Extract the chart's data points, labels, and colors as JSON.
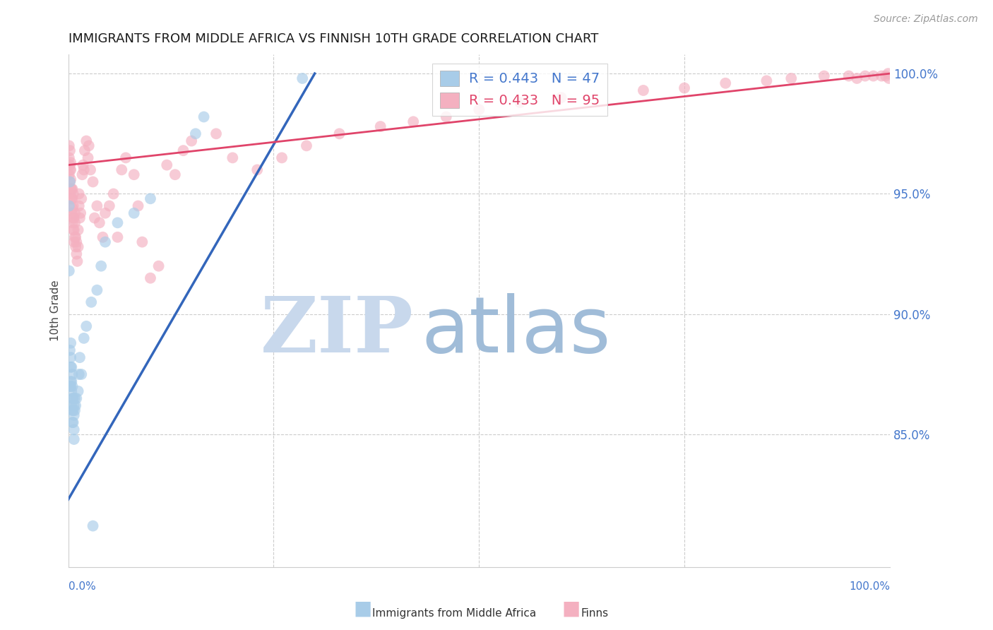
{
  "title": "IMMIGRANTS FROM MIDDLE AFRICA VS FINNISH 10TH GRADE CORRELATION CHART",
  "source": "Source: ZipAtlas.com",
  "ylabel": "10th Grade",
  "legend_blue_r": "R = 0.443",
  "legend_blue_n": "N = 47",
  "legend_pink_r": "R = 0.433",
  "legend_pink_n": "N = 95",
  "blue_color": "#a8cce8",
  "pink_color": "#f4b0c0",
  "blue_line_color": "#3366bb",
  "pink_line_color": "#e0446a",
  "xlim": [
    0.0,
    1.0
  ],
  "ylim": [
    0.795,
    1.008
  ],
  "yticks": [
    0.85,
    0.9,
    0.95,
    1.0
  ],
  "ytick_labels": [
    "85.0%",
    "90.0%",
    "95.0%",
    "100.0%"
  ],
  "background_color": "#ffffff",
  "grid_color": "#cccccc",
  "title_fontsize": 13,
  "axis_label_color": "#444444",
  "right_axis_color": "#4477cc",
  "watermark_color_zip": "#c8d8ec",
  "watermark_color_atlas": "#a0bcd8",
  "blue_line_start_x": 0.0,
  "blue_line_start_y": 0.823,
  "blue_line_end_x": 0.3,
  "blue_line_end_y": 1.0,
  "pink_line_start_x": 0.0,
  "pink_line_start_y": 0.962,
  "pink_line_end_x": 1.0,
  "pink_line_end_y": 1.0,
  "blue_scatter_x": [
    0.001,
    0.001,
    0.002,
    0.002,
    0.002,
    0.003,
    0.003,
    0.003,
    0.003,
    0.003,
    0.004,
    0.004,
    0.004,
    0.004,
    0.005,
    0.005,
    0.005,
    0.005,
    0.005,
    0.006,
    0.006,
    0.006,
    0.007,
    0.007,
    0.007,
    0.007,
    0.008,
    0.008,
    0.009,
    0.01,
    0.012,
    0.013,
    0.014,
    0.016,
    0.019,
    0.022,
    0.028,
    0.035,
    0.04,
    0.045,
    0.06,
    0.08,
    0.1,
    0.155,
    0.165,
    0.285,
    0.03
  ],
  "blue_scatter_y": [
    0.918,
    0.945,
    0.955,
    0.87,
    0.885,
    0.87,
    0.872,
    0.878,
    0.882,
    0.888,
    0.862,
    0.868,
    0.872,
    0.878,
    0.855,
    0.86,
    0.865,
    0.87,
    0.875,
    0.855,
    0.86,
    0.865,
    0.848,
    0.852,
    0.858,
    0.862,
    0.86,
    0.865,
    0.862,
    0.865,
    0.868,
    0.875,
    0.882,
    0.875,
    0.89,
    0.895,
    0.905,
    0.91,
    0.92,
    0.93,
    0.938,
    0.942,
    0.948,
    0.975,
    0.982,
    0.998,
    0.812
  ],
  "pink_scatter_x": [
    0.001,
    0.001,
    0.001,
    0.002,
    0.002,
    0.002,
    0.002,
    0.003,
    0.003,
    0.003,
    0.003,
    0.003,
    0.004,
    0.004,
    0.004,
    0.005,
    0.005,
    0.005,
    0.005,
    0.006,
    0.006,
    0.006,
    0.006,
    0.007,
    0.007,
    0.007,
    0.008,
    0.008,
    0.008,
    0.009,
    0.009,
    0.01,
    0.01,
    0.011,
    0.012,
    0.012,
    0.013,
    0.013,
    0.014,
    0.015,
    0.016,
    0.017,
    0.018,
    0.019,
    0.02,
    0.022,
    0.024,
    0.025,
    0.027,
    0.03,
    0.032,
    0.035,
    0.038,
    0.042,
    0.045,
    0.05,
    0.055,
    0.06,
    0.065,
    0.07,
    0.08,
    0.085,
    0.09,
    0.1,
    0.11,
    0.12,
    0.13,
    0.14,
    0.15,
    0.18,
    0.2,
    0.23,
    0.26,
    0.29,
    0.33,
    0.38,
    0.42,
    0.46,
    0.5,
    0.55,
    0.6,
    0.7,
    0.75,
    0.8,
    0.85,
    0.88,
    0.92,
    0.95,
    0.96,
    0.97,
    0.98,
    0.99,
    0.995,
    0.998,
    0.999
  ],
  "pink_scatter_y": [
    0.97,
    0.958,
    0.965,
    0.96,
    0.968,
    0.955,
    0.962,
    0.948,
    0.952,
    0.956,
    0.96,
    0.963,
    0.942,
    0.948,
    0.952,
    0.938,
    0.944,
    0.948,
    0.952,
    0.935,
    0.94,
    0.945,
    0.95,
    0.93,
    0.935,
    0.94,
    0.932,
    0.938,
    0.942,
    0.928,
    0.932,
    0.925,
    0.93,
    0.922,
    0.928,
    0.935,
    0.945,
    0.95,
    0.94,
    0.942,
    0.948,
    0.958,
    0.962,
    0.96,
    0.968,
    0.972,
    0.965,
    0.97,
    0.96,
    0.955,
    0.94,
    0.945,
    0.938,
    0.932,
    0.942,
    0.945,
    0.95,
    0.932,
    0.96,
    0.965,
    0.958,
    0.945,
    0.93,
    0.915,
    0.92,
    0.962,
    0.958,
    0.968,
    0.972,
    0.975,
    0.965,
    0.96,
    0.965,
    0.97,
    0.975,
    0.978,
    0.98,
    0.982,
    0.985,
    0.988,
    0.99,
    0.993,
    0.994,
    0.996,
    0.997,
    0.998,
    0.999,
    0.999,
    0.998,
    0.999,
    0.999,
    0.999,
    0.999,
    1.0,
    0.998
  ]
}
